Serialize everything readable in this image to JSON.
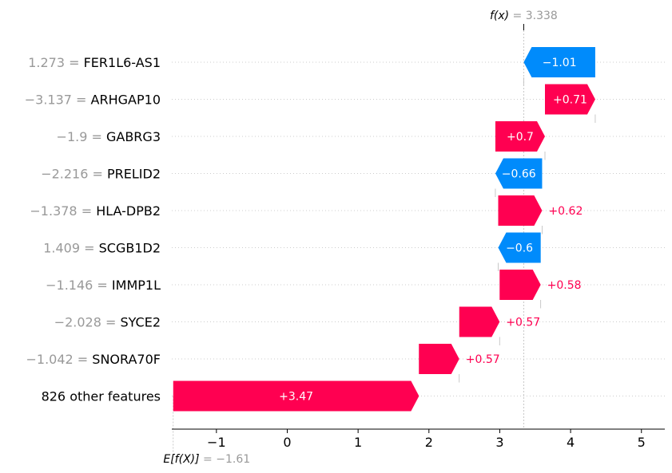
{
  "chart_data": {
    "type": "waterfall",
    "fx": {
      "label": "f(x)",
      "value_text": "3.338",
      "value": 3.338
    },
    "base": {
      "label": "E[f(X)]",
      "value_text": "−1.61",
      "value": -1.61
    },
    "features": [
      {
        "value_text": "1.273",
        "name": "FER1L6-AS1",
        "start": 4.348,
        "contribution": -1.01,
        "label": "−1.01"
      },
      {
        "value_text": "−3.137",
        "name": "ARHGAP10",
        "start": 3.638,
        "contribution": 0.71,
        "label": "+0.71"
      },
      {
        "value_text": "−1.9",
        "name": "GABRG3",
        "start": 2.938,
        "contribution": 0.7,
        "label": "+0.7"
      },
      {
        "value_text": "−2.216",
        "name": "PRELID2",
        "start": 3.598,
        "contribution": -0.66,
        "label": "−0.66"
      },
      {
        "value_text": "−1.378",
        "name": "HLA-DPB2",
        "start": 2.978,
        "contribution": 0.62,
        "label": "+0.62"
      },
      {
        "value_text": "1.409",
        "name": "SCGB1D2",
        "start": 3.578,
        "contribution": -0.6,
        "label": "−0.6"
      },
      {
        "value_text": "−1.146",
        "name": "IMMP1L",
        "start": 2.998,
        "contribution": 0.58,
        "label": "+0.58"
      },
      {
        "value_text": "−2.028",
        "name": "SYCE2",
        "start": 2.428,
        "contribution": 0.57,
        "label": "+0.57"
      },
      {
        "value_text": "−1.042",
        "name": "SNORA70F",
        "start": 1.858,
        "contribution": 0.57,
        "label": "+0.57"
      },
      {
        "value_text": "",
        "name": "826 other features",
        "start": -1.61,
        "contribution": 3.47,
        "label": "+3.47"
      }
    ],
    "x_ticks": [
      {
        "value": -1,
        "label": "−1"
      },
      {
        "value": 0,
        "label": "0"
      },
      {
        "value": 1,
        "label": "1"
      },
      {
        "value": 2,
        "label": "2"
      },
      {
        "value": 3,
        "label": "3"
      },
      {
        "value": 4,
        "label": "4"
      },
      {
        "value": 5,
        "label": "5"
      }
    ],
    "xlim": [
      -1.63,
      5.33
    ],
    "colors": {
      "positive": "#ff0051",
      "negative": "#008bfb",
      "muted": "#999999"
    }
  }
}
